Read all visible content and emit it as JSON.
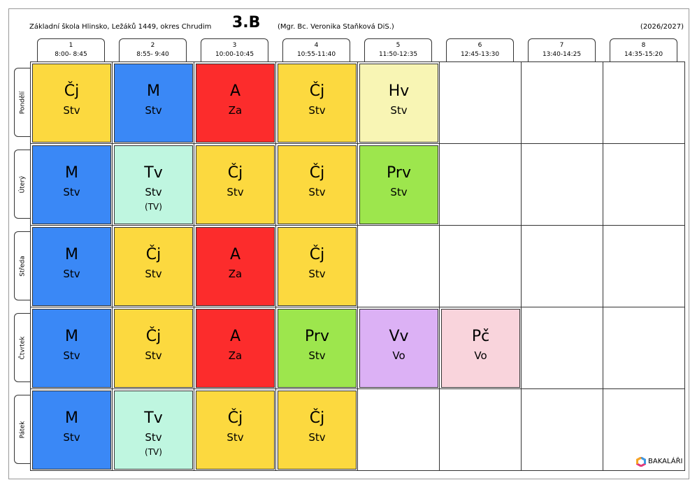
{
  "header": {
    "school": "Základní škola Hlinsko, Ležáků 1449, okres Chrudim",
    "class": "3.B",
    "teacher": "(Mgr. Bc. Veronika Staňková DiS.)",
    "year": "(2026/2027)"
  },
  "periods": [
    {
      "number": "1",
      "time": "8:00- 8:45"
    },
    {
      "number": "2",
      "time": "8:55- 9:40"
    },
    {
      "number": "3",
      "time": "10:00-10:45"
    },
    {
      "number": "4",
      "time": "10:55-11:40"
    },
    {
      "number": "5",
      "time": "11:50-12:35"
    },
    {
      "number": "6",
      "time": "12:45-13:30"
    },
    {
      "number": "7",
      "time": "13:40-14:25"
    },
    {
      "number": "8",
      "time": "14:35-15:20"
    }
  ],
  "days": [
    {
      "name": "Pondělí",
      "lessons": [
        {
          "subject": "Čj",
          "teacher": "Stv",
          "color": "#fcd93f"
        },
        {
          "subject": "M",
          "teacher": "Stv",
          "color": "#3a88f6"
        },
        {
          "subject": "A",
          "teacher": "Za",
          "color": "#fc2c2c"
        },
        {
          "subject": "Čj",
          "teacher": "Stv",
          "color": "#fcd93f"
        },
        {
          "subject": "Hv",
          "teacher": "Stv",
          "color": "#f8f5b4"
        },
        null,
        null,
        null
      ]
    },
    {
      "name": "Úterý",
      "lessons": [
        {
          "subject": "M",
          "teacher": "Stv",
          "color": "#3a88f6"
        },
        {
          "subject": "Tv",
          "teacher": "Stv",
          "note": "(TV)",
          "color": "#bff6e0"
        },
        {
          "subject": "Čj",
          "teacher": "Stv",
          "color": "#fcd93f"
        },
        {
          "subject": "Čj",
          "teacher": "Stv",
          "color": "#fcd93f"
        },
        {
          "subject": "Prv",
          "teacher": "Stv",
          "color": "#9de64d"
        },
        null,
        null,
        null
      ]
    },
    {
      "name": "Středa",
      "lessons": [
        {
          "subject": "M",
          "teacher": "Stv",
          "color": "#3a88f6"
        },
        {
          "subject": "Čj",
          "teacher": "Stv",
          "color": "#fcd93f"
        },
        {
          "subject": "A",
          "teacher": "Za",
          "color": "#fc2c2c"
        },
        {
          "subject": "Čj",
          "teacher": "Stv",
          "color": "#fcd93f"
        },
        null,
        null,
        null,
        null
      ]
    },
    {
      "name": "Čtvrtek",
      "lessons": [
        {
          "subject": "M",
          "teacher": "Stv",
          "color": "#3a88f6"
        },
        {
          "subject": "Čj",
          "teacher": "Stv",
          "color": "#fcd93f"
        },
        {
          "subject": "A",
          "teacher": "Za",
          "color": "#fc2c2c"
        },
        {
          "subject": "Prv",
          "teacher": "Stv",
          "color": "#9de64d"
        },
        {
          "subject": "Vv",
          "teacher": "Vo",
          "color": "#dcb1f5"
        },
        {
          "subject": "Pč",
          "teacher": "Vo",
          "color": "#f9d4dc"
        },
        null,
        null
      ]
    },
    {
      "name": "Pátek",
      "lessons": [
        {
          "subject": "M",
          "teacher": "Stv",
          "color": "#3a88f6"
        },
        {
          "subject": "Tv",
          "teacher": "Stv",
          "note": "(TV)",
          "color": "#bff6e0"
        },
        {
          "subject": "Čj",
          "teacher": "Stv",
          "color": "#fcd93f"
        },
        {
          "subject": "Čj",
          "teacher": "Stv",
          "color": "#fcd93f"
        },
        null,
        null,
        null,
        null
      ]
    }
  ],
  "footer": {
    "logo": "BAKALÁŘI"
  }
}
